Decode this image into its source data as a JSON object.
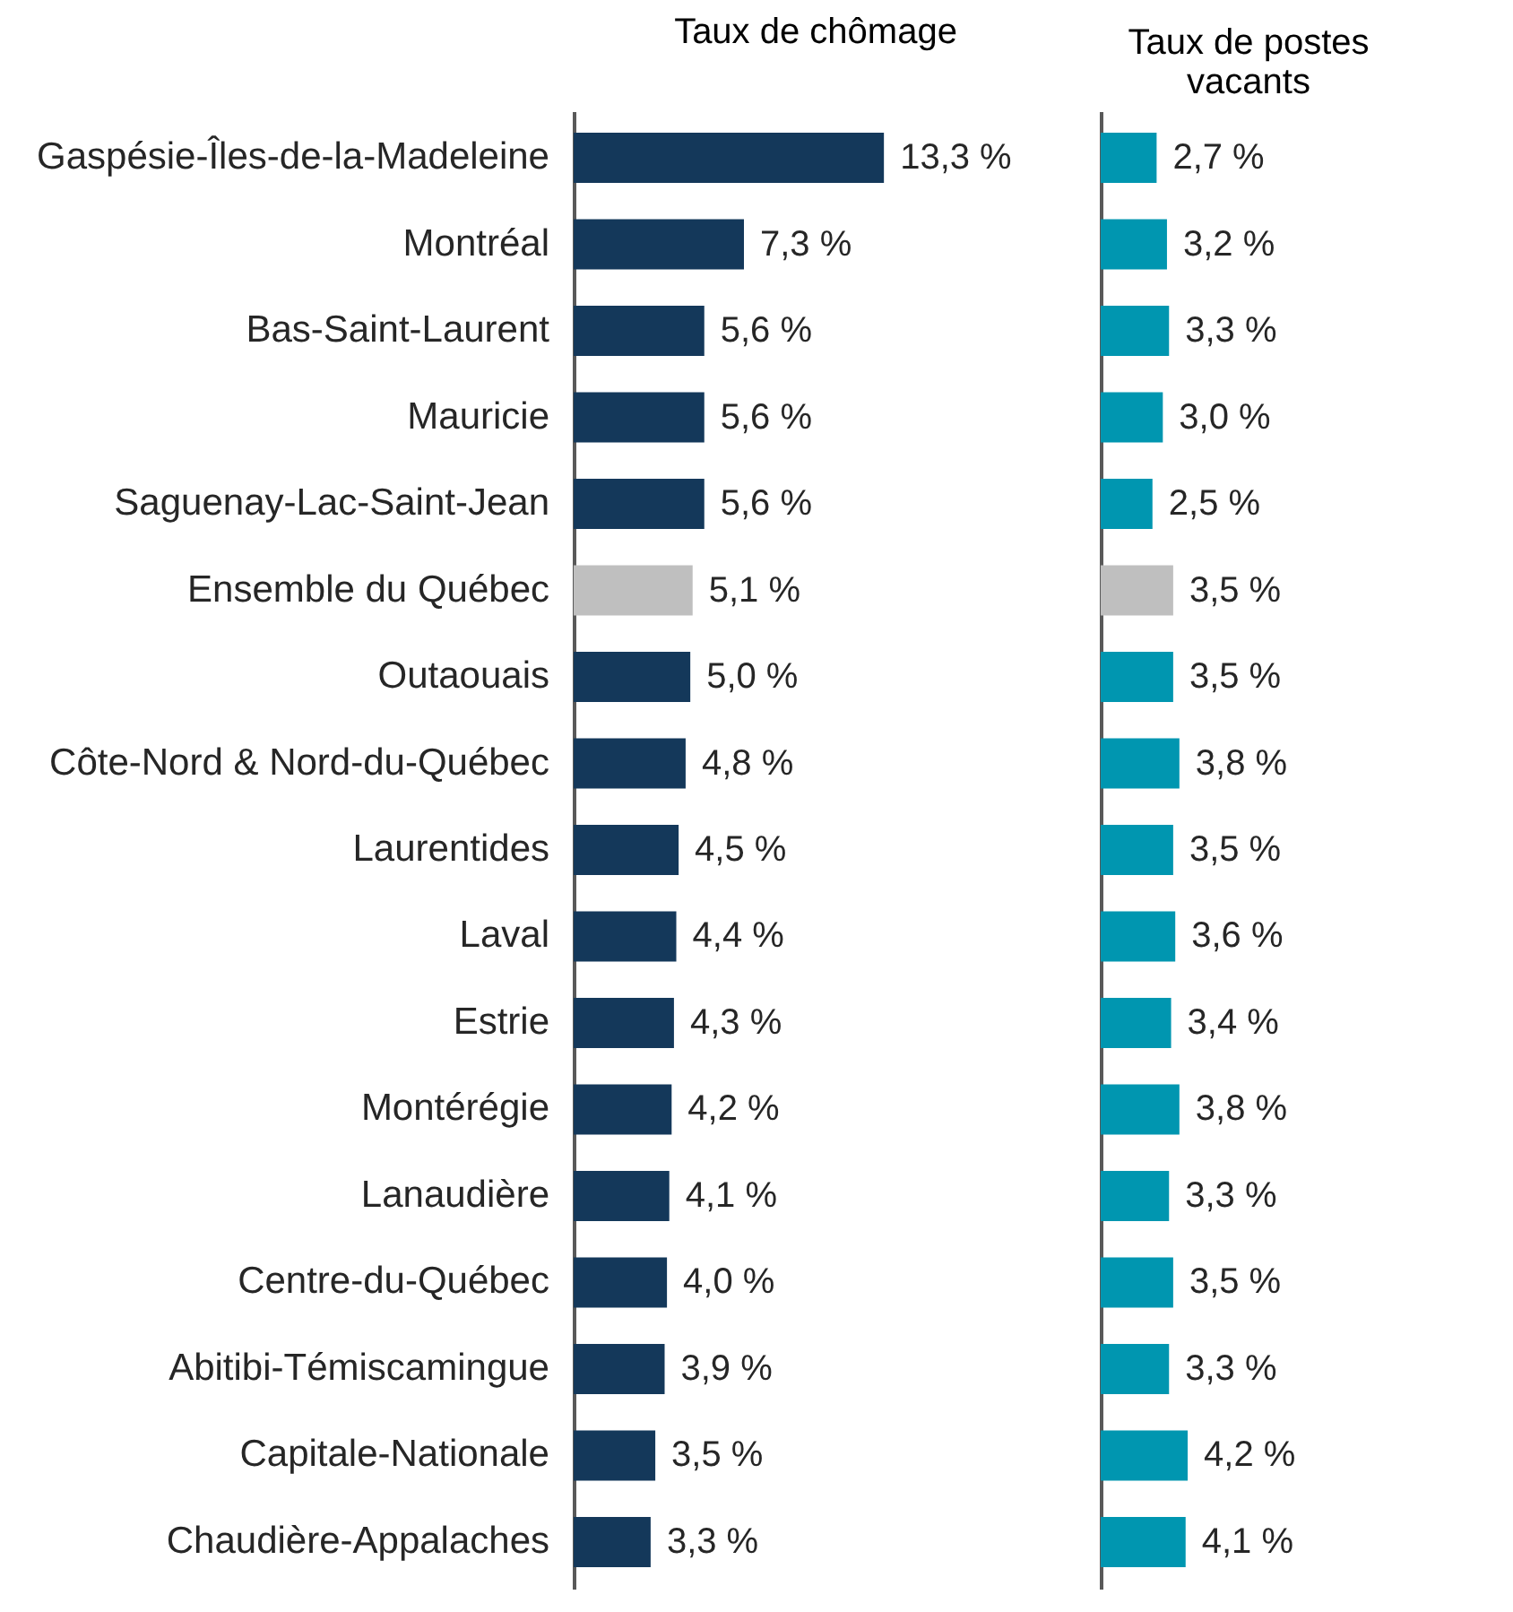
{
  "chart_data": [
    {
      "type": "bar",
      "orientation": "horizontal",
      "title": "Taux de chômage",
      "categories": [
        "Gaspésie-Îles-de-la-Madeleine",
        "Montréal",
        "Bas-Saint-Laurent",
        "Mauricie",
        "Saguenay-Lac-Saint-Jean",
        "Ensemble du Québec",
        "Outaouais",
        "Côte-Nord & Nord-du-Québec",
        "Laurentides",
        "Laval",
        "Estrie",
        "Montérégie",
        "Lanaudière",
        "Centre-du-Québec",
        "Abitibi-Témiscamingue",
        "Capitale-Nationale",
        "Chaudière-Appalaches"
      ],
      "values": [
        13.3,
        7.3,
        5.6,
        5.6,
        5.6,
        5.1,
        5.0,
        4.8,
        4.5,
        4.4,
        4.3,
        4.2,
        4.1,
        4.0,
        3.9,
        3.5,
        3.3
      ],
      "colors": [
        "#14385a",
        "#14385a",
        "#14385a",
        "#14385a",
        "#14385a",
        "#bfbfbf",
        "#14385a",
        "#14385a",
        "#14385a",
        "#14385a",
        "#14385a",
        "#14385a",
        "#14385a",
        "#14385a",
        "#14385a",
        "#14385a",
        "#14385a"
      ],
      "value_labels": [
        "13,3 %",
        "7,3 %",
        "5,6 %",
        "5,6 %",
        "5,6 %",
        "5,1 %",
        "5,0 %",
        "4,8 %",
        "4,5 %",
        "4,4 %",
        "4,3 %",
        "4,2 %",
        "4,1 %",
        "4,0 %",
        "3,9 %",
        "3,5 %",
        "3,3 %"
      ],
      "tick_labels": "y",
      "grid": false
    },
    {
      "type": "bar",
      "orientation": "horizontal",
      "title": "Taux de postes vacants",
      "categories": [
        null,
        null,
        null,
        null,
        null,
        null,
        null,
        null,
        null,
        null,
        null,
        null,
        null,
        null,
        null,
        null,
        null
      ],
      "values": [
        2.7,
        3.2,
        3.3,
        3.0,
        2.5,
        3.5,
        3.5,
        3.8,
        3.5,
        3.6,
        3.4,
        3.8,
        3.3,
        3.5,
        3.3,
        4.2,
        4.1
      ],
      "colors": [
        "#0096b0",
        "#0096b0",
        "#0096b0",
        "#0096b0",
        "#0096b0",
        "#bfbfbf",
        "#0096b0",
        "#0096b0",
        "#0096b0",
        "#0096b0",
        "#0096b0",
        "#0096b0",
        "#0096b0",
        "#0096b0",
        "#0096b0",
        "#0096b0",
        "#0096b0"
      ],
      "value_labels": [
        "2,7 %",
        "3,2 %",
        "3,3 %",
        "3,0 %",
        "2,5 %",
        "3,5 %",
        "3,5 %",
        "3,8 %",
        "3,5 %",
        "3,6 %",
        "3,4 %",
        "3,8 %",
        "3,3 %",
        "3,5 %",
        "3,3 %",
        "4,2 %",
        "4,1 %"
      ],
      "tick_labels": false,
      "grid": false
    }
  ]
}
